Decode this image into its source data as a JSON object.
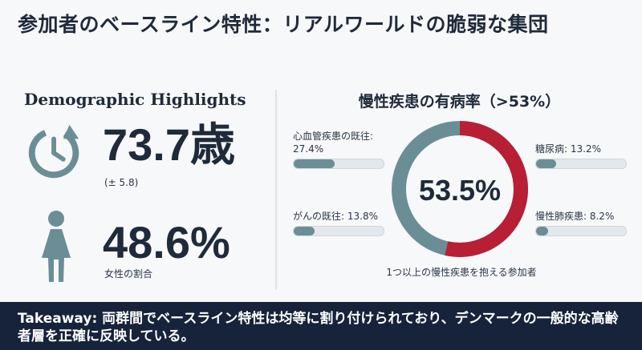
{
  "title": "参加者のベースライン特性：リアルワールドの脆弱な集団",
  "demographics": {
    "heading": "Demographic Highlights",
    "age": {
      "value": "73.7歳",
      "sd": "(± 5.8)",
      "icon": "clock-icon"
    },
    "female": {
      "value": "48.6%",
      "label": "女性の割合",
      "icon": "female-icon"
    }
  },
  "chronic": {
    "heading": "慢性疾患の有病率（>53%）",
    "items": [
      {
        "label": "心血管疾患の既往: 27.4%",
        "value": 27.4
      },
      {
        "label": "がんの既往: 13.8%",
        "value": 13.8
      },
      {
        "label": "糖尿病: 13.2%",
        "value": 13.2
      },
      {
        "label": "慢性肺疾患: 8.2%",
        "value": 8.2
      }
    ],
    "donut": {
      "value": 53.5,
      "center_label": "53.5%",
      "caption": "1つ以上の慢性疾患を抱える参加者"
    },
    "colors": {
      "accent": "#b81f34",
      "track": "#6b8e96",
      "bar_fill": "#6b8e96"
    }
  },
  "takeaway": {
    "text": "Takeaway: 両群間でベースライン特性は均等に割り付けられており、デンマークの一般的な高齢者層を正確に反映している。"
  }
}
